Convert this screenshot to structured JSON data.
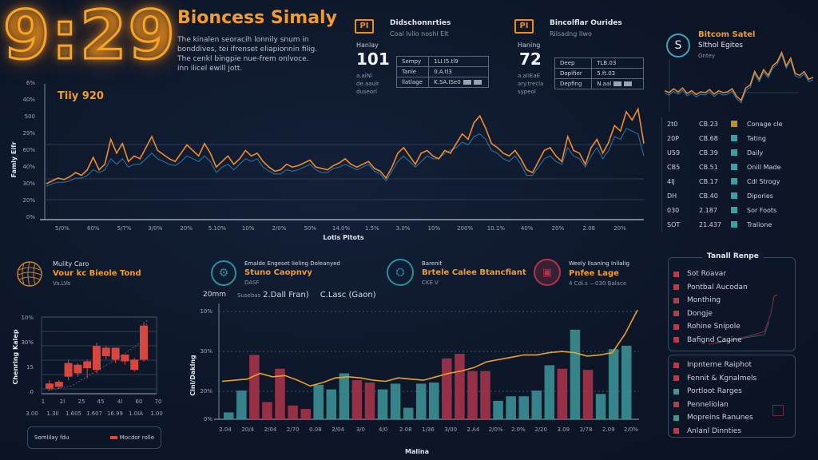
{
  "header": {
    "clock": "9:29",
    "title": "Bioncess Simaly",
    "description": "The kinalen seoracih lonnily snum in bonddives, tei ifrenset eliapionnin filig. The cenkl bingpie nue-frem onlvoce. inn ilicel ewill jott."
  },
  "stat_cards": [
    {
      "icon": "pi-badge-icon",
      "icon_text": "PI",
      "title": "Didschonnrties",
      "subtitle": "Coal Ivilo noshl Elt",
      "label": "Hanlay",
      "value": "101",
      "notes": [
        "a.aiNi",
        "de.aaulr",
        "duseorl"
      ],
      "rows": [
        {
          "key": "Sempy",
          "value": "1LI.I5.tl9",
          "chips": false
        },
        {
          "key": "Tanle",
          "value": "0.A.tl3",
          "chips": false
        },
        {
          "key": "llatlage",
          "value": "K.SA.ISe0",
          "chips": true
        }
      ]
    },
    {
      "icon": "pi-badge-icon",
      "icon_text": "PI",
      "title": "Bincolflar Ourides",
      "subtitle": "Rilsadng lIwo",
      "label": "Haning",
      "value": "72",
      "notes": [
        "a.aIIEaE",
        "ary.trecla",
        "sypeol"
      ],
      "rows": [
        {
          "key": "Deep",
          "value": "TLB.03",
          "chips": false
        },
        {
          "key": "Dopifier",
          "value": "5.ft.03",
          "chips": false
        },
        {
          "key": "Depfing",
          "value": "N.aal",
          "chips": true
        }
      ]
    }
  ],
  "bitcoin": {
    "badge": "S",
    "title": "Bitcom Satel",
    "subtitle": "Slthol Egites",
    "note": "Ontey",
    "series": [
      0.55,
      0.5,
      0.6,
      0.52,
      0.62,
      0.48,
      0.55,
      0.45,
      0.52,
      0.5,
      0.58,
      0.46,
      0.55,
      0.5,
      0.52,
      0.6,
      0.4,
      0.3,
      0.62,
      0.7,
      1.05,
      0.85,
      1.1,
      0.95,
      1.2,
      1.3,
      1.55,
      1.2,
      1.4,
      1.0,
      0.95,
      1.05,
      0.85,
      0.9
    ],
    "legend": [
      {
        "marker": "2t0",
        "value": "CB.23",
        "color": "#b8902e",
        "label": "Conage cle"
      },
      {
        "marker": "20P",
        "value": "CB.68",
        "color": "#3aa0a0",
        "label": "Tating"
      },
      {
        "marker": "U59",
        "value": "CB.39",
        "color": "#3aa0a0",
        "label": "Daily"
      },
      {
        "marker": "CB5",
        "value": "CB.51",
        "color": "#3aa0a0",
        "label": "Onill Made"
      },
      {
        "marker": "4IJ",
        "value": "CB.17",
        "color": "#3aa0a0",
        "label": "Cdl Strogy"
      },
      {
        "marker": "DH",
        "value": "CB.40",
        "color": "#3aa0a0",
        "label": "Dipories"
      },
      {
        "marker": "030",
        "value": "2.187",
        "color": "#3aa0a0",
        "label": "Sor Foots"
      },
      {
        "marker": "SOT",
        "value": "21.437",
        "color": "#3aa0a0",
        "label": "Tralione"
      }
    ]
  },
  "main_chart": {
    "label": "Tiiy 920",
    "ylabel": "Famly Eifr",
    "xlabel": "Lotis Pitots"
  },
  "chart_data": [
    {
      "type": "line",
      "title": "Tiiy 920",
      "xlabel": "Lotis Pitots",
      "ylabel": "Famly Eifr",
      "yticks": [
        "0%",
        "20%",
        "30%",
        "40%",
        "60%",
        "29%",
        "500",
        "40%",
        "6%"
      ],
      "xticks": [
        "5/0%",
        "60%",
        "5/7%",
        "3/0%",
        "20%",
        "5.10%",
        "10%",
        "2/0%",
        "50%",
        "14.0%",
        "1.5%",
        "3.0%",
        "10%",
        "200%",
        "10.1%",
        "40%",
        "20%",
        "2.08",
        "20%"
      ],
      "ylim": [
        0,
        100
      ],
      "grid": true,
      "series": [
        {
          "name": "primary",
          "color": "#f28c2a",
          "values": [
            26,
            28,
            30,
            29,
            31,
            34,
            32,
            36,
            45,
            36,
            40,
            58,
            48,
            55,
            42,
            46,
            44,
            52,
            60,
            50,
            47,
            44,
            42,
            48,
            54,
            50,
            46,
            55,
            48,
            38,
            42,
            46,
            40,
            44,
            50,
            46,
            48,
            42,
            38,
            35,
            36,
            40,
            38,
            39,
            41,
            43,
            38,
            37,
            36,
            39,
            41,
            44,
            40,
            38,
            40,
            42,
            37,
            35,
            30,
            38,
            48,
            52,
            46,
            40,
            48,
            50,
            46,
            44,
            50,
            48,
            55,
            62,
            58,
            70,
            75,
            66,
            55,
            52,
            48,
            46,
            50,
            44,
            36,
            34,
            42,
            50,
            52,
            46,
            42,
            60,
            50,
            48,
            40,
            52,
            58,
            48,
            56,
            68,
            64,
            78,
            72,
            80,
            55
          ]
        },
        {
          "name": "secondary",
          "color": "#2f7fb0",
          "values": [
            24,
            26,
            27,
            27,
            28,
            30,
            30,
            32,
            36,
            34,
            36,
            44,
            40,
            44,
            38,
            40,
            40,
            44,
            48,
            44,
            42,
            40,
            39,
            42,
            46,
            44,
            42,
            46,
            42,
            34,
            38,
            40,
            36,
            40,
            44,
            42,
            44,
            38,
            35,
            33,
            33,
            36,
            35,
            36,
            38,
            40,
            36,
            34,
            34,
            37,
            38,
            40,
            38,
            36,
            38,
            40,
            35,
            33,
            28,
            35,
            42,
            46,
            42,
            38,
            42,
            46,
            44,
            44,
            48,
            50,
            52,
            56,
            54,
            60,
            62,
            58,
            50,
            48,
            44,
            42,
            46,
            40,
            32,
            32,
            38,
            44,
            46,
            42,
            40,
            52,
            46,
            44,
            38,
            46,
            52,
            44,
            50,
            60,
            58,
            66,
            64,
            62,
            46
          ]
        }
      ]
    },
    {
      "type": "bar",
      "title": "Vour kc Bieole Tond",
      "ylabel": "Chenring Kalep",
      "xticks": [
        "1",
        "2l",
        "25",
        "45",
        "4l",
        "60",
        "70"
      ],
      "xticks2": [
        "3.00",
        "1.3Il",
        "1.605",
        "1.607",
        "16.99",
        "1.0IA",
        "1.00"
      ],
      "yticks": [
        "0",
        "15",
        "30%",
        "10%"
      ],
      "legend": [
        "Somlilay fdu",
        "Mocdor rolle"
      ],
      "candles": [
        {
          "open": 3,
          "close": 6,
          "low": 2,
          "high": 8
        },
        {
          "open": 4,
          "close": 7,
          "low": 3,
          "high": 8
        },
        {
          "open": 10,
          "close": 18,
          "low": 8,
          "high": 20
        },
        {
          "open": 12,
          "close": 17,
          "low": 10,
          "high": 18
        },
        {
          "open": 15,
          "close": 19,
          "low": 9,
          "high": 20
        },
        {
          "open": 14,
          "close": 28,
          "low": 12,
          "high": 30
        },
        {
          "open": 22,
          "close": 27,
          "low": 20,
          "high": 28
        },
        {
          "open": 20,
          "close": 27,
          "low": 18,
          "high": 27
        },
        {
          "open": 19,
          "close": 23,
          "low": 17,
          "high": 23
        },
        {
          "open": 14,
          "close": 20,
          "low": 13,
          "high": 21
        },
        {
          "open": 20,
          "close": 40,
          "low": 19,
          "high": 42
        }
      ],
      "ylim": [
        0,
        45
      ]
    },
    {
      "type": "bar",
      "title": "20mm — 2.Dall Fran) C.Lasc (Gaon)",
      "xlabel": "Malina",
      "ylabel": "Cinl/Daklng",
      "yticks": [
        "0%",
        "20%",
        "30%",
        "10%"
      ],
      "xticks": [
        "2.04",
        "20/4",
        "2/04",
        "2/70",
        "0.08",
        "2/04",
        "3/0",
        "4/0",
        "2.08",
        "1/36",
        "3/00",
        "2.A4",
        "2/0%",
        "2.0%",
        "2/20",
        "3.09",
        "2/78",
        "2.09",
        "2/0%"
      ],
      "ylim": [
        0,
        100
      ],
      "grid": true,
      "bars": [
        {
          "color": "#3a8e93",
          "value": 6
        },
        {
          "color": "#3a8e93",
          "value": 25
        },
        {
          "color": "#a2334a",
          "value": 56
        },
        {
          "color": "#a2334a",
          "value": 15
        },
        {
          "color": "#a2334a",
          "value": 44
        },
        {
          "color": "#a2334a",
          "value": 12
        },
        {
          "color": "#a2334a",
          "value": 9
        },
        {
          "color": "#3a8e93",
          "value": 30
        },
        {
          "color": "#3a8e93",
          "value": 26
        },
        {
          "color": "#3a8e93",
          "value": 40
        },
        {
          "color": "#a2334a",
          "value": 34
        },
        {
          "color": "#a2334a",
          "value": 32
        },
        {
          "color": "#3a8e93",
          "value": 26
        },
        {
          "color": "#3a8e93",
          "value": 31
        },
        {
          "color": "#3a8e93",
          "value": 10
        },
        {
          "color": "#3a8e93",
          "value": 31
        },
        {
          "color": "#3a8e93",
          "value": 32
        },
        {
          "color": "#a2334a",
          "value": 53
        },
        {
          "color": "#a2334a",
          "value": 57
        },
        {
          "color": "#a2334a",
          "value": 42
        },
        {
          "color": "#a2334a",
          "value": 42
        },
        {
          "color": "#3a8e93",
          "value": 16
        },
        {
          "color": "#3a8e93",
          "value": 20
        },
        {
          "color": "#3a8e93",
          "value": 20
        },
        {
          "color": "#3a8e93",
          "value": 25
        },
        {
          "color": "#3a8e93",
          "value": 47
        },
        {
          "color": "#a2334a",
          "value": 44
        },
        {
          "color": "#3a8e93",
          "value": 78
        },
        {
          "color": "#a2334a",
          "value": 43
        },
        {
          "color": "#3a8e93",
          "value": 22
        },
        {
          "color": "#3a8e93",
          "value": 61
        },
        {
          "color": "#3a8e93",
          "value": 64
        }
      ],
      "line": {
        "color": "#e8a22a",
        "values": [
          33,
          34,
          35,
          40,
          37,
          38,
          34,
          29,
          32,
          36,
          37,
          36,
          34,
          33,
          36,
          35,
          34,
          37,
          40,
          42,
          45,
          50,
          52,
          54,
          56,
          56,
          58,
          59,
          58,
          55,
          56,
          58,
          74,
          95
        ]
      }
    }
  ],
  "panels": [
    {
      "icon": "mesh-sphere-icon",
      "top": "Mulity Caro",
      "title": "Vour kc Bieole Tond",
      "sub": "Va.LVo",
      "icon_color": "#c7862e"
    },
    {
      "icon": "robot-circle-icon",
      "top": "Emalde Engeset Iieling Doleanyed",
      "title": "Stuno Caopnvy",
      "sub": "DASF",
      "icon_color": "#2b8f9e"
    },
    {
      "icon": "machine-circle-icon",
      "top": "Barenit",
      "title": "Brtele Calee Btancfiant",
      "sub": "CKE.V",
      "icon_color": "#2b8f9e"
    },
    {
      "icon": "truck-circle-icon",
      "top": "Weely Ilsaning Inlialig",
      "title": "Pnfee Lage",
      "sub": "4 Cdi.s —030 Balace",
      "icon_color": "#b3344a"
    }
  ],
  "bar_chart_header": {
    "left": "20mm",
    "mid_prefix": "Susebas",
    "mid": "2.Dall Fran)",
    "right": "C.Lasc (Gaon)"
  },
  "right_lists": {
    "box1_title": "Tanall Renpe",
    "box1": [
      {
        "label": "Sot Roavar",
        "color": "#c0374a"
      },
      {
        "label": "Pontbal Aucodan",
        "color": "#c0374a"
      },
      {
        "label": "Monthing",
        "color": "#c0374a"
      },
      {
        "label": "Dongje",
        "color": "#c0374a"
      },
      {
        "label": "Rohine Snipole",
        "color": "#c0374a"
      },
      {
        "label": "Bafignd Cagine",
        "color": "#c0374a"
      }
    ],
    "box2": [
      {
        "label": "Inpnterne Raiphot",
        "color": "#c0374a"
      },
      {
        "label": "Fennit & Kgnalmels",
        "color": "#c0374a"
      },
      {
        "label": "Portloot Rarges",
        "color": "#3a9a96"
      },
      {
        "label": "Penneliolan",
        "color": "#c0374a"
      },
      {
        "label": "Mopreins Ranunes",
        "color": "#3a9a96"
      },
      {
        "label": "Anlanl Dinnties",
        "color": "#c0374a"
      }
    ]
  },
  "colors": {
    "accent_orange": "#f59b2a",
    "teal": "#3a8e93",
    "crimson": "#a2334a",
    "background": "#0d1729"
  }
}
